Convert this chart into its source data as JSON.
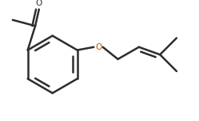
{
  "bg_color": "#ffffff",
  "line_color": "#2d2d2d",
  "oxygen_color": "#b35900",
  "line_width": 1.8,
  "fig_width": 2.49,
  "fig_height": 1.51,
  "dpi": 100
}
